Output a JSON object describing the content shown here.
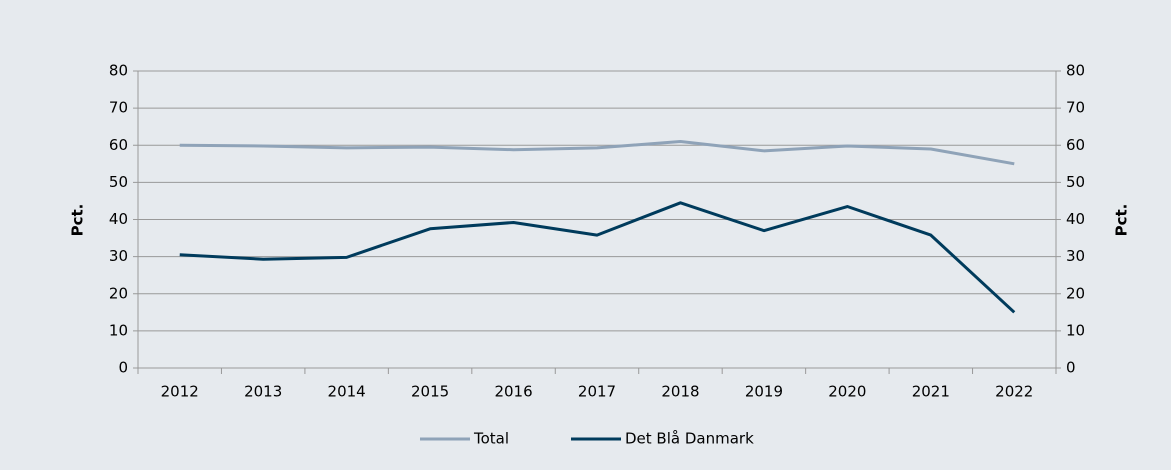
{
  "chart_data": {
    "type": "line",
    "categories": [
      "2012",
      "2013",
      "2014",
      "2015",
      "2016",
      "2017",
      "2018",
      "2019",
      "2020",
      "2021",
      "2022"
    ],
    "series": [
      {
        "name": "Total",
        "color": "#8fa3b8",
        "values": [
          60,
          59.8,
          59.3,
          59.5,
          58.8,
          59.3,
          61,
          58.5,
          59.8,
          59,
          55
        ]
      },
      {
        "name": "Det Blå Danmark",
        "color": "#003b5c",
        "values": [
          30.5,
          29.3,
          29.8,
          37.5,
          39.2,
          35.8,
          44.5,
          37,
          43.5,
          35.8,
          15
        ]
      }
    ],
    "ylabel": "Pct.",
    "y2label": "Pct.",
    "ylim": [
      0,
      80
    ],
    "yticks": [
      0,
      10,
      20,
      30,
      40,
      50,
      60,
      70,
      80
    ],
    "y2lim": [
      0,
      80
    ],
    "y2ticks": [
      0,
      10,
      20,
      30,
      40,
      50,
      60,
      70,
      80
    ],
    "grid": true,
    "legend": "bottom"
  }
}
